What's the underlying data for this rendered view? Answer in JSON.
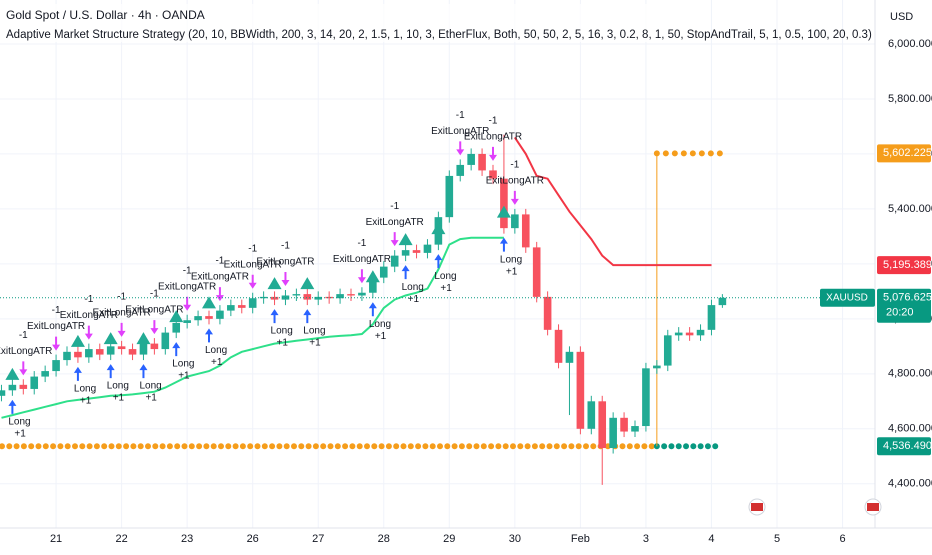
{
  "chart_data": {
    "type": "candlestick",
    "title": "Gold Spot / U.S. Dollar · 4h · OANDA",
    "subtitle": "Adaptive Market Structure Strategy (20, 10, BBWidth, 200, 3, 14, 20, 2, 1.5, 1, 10, 3, EtherFlux, Both, 50, 50, 2, 5, 16, 3, 0.2, 8, 1, 50, StopAndTrail, 5, 1, 0.5, 100, 20, 0.3)",
    "currency": "USD",
    "up_color": "#22ab94",
    "down_color": "#f7525f",
    "grid": true,
    "ylim": [
      4210,
      6160
    ],
    "yticks": [
      {
        "value": 4400,
        "label": "4,400.000"
      },
      {
        "value": 4600,
        "label": "4,600.000"
      },
      {
        "value": 4800,
        "label": "4,800.000"
      },
      {
        "value": 5000,
        "label": "5,000.000"
      },
      {
        "value": 5200,
        "label": "5,200.000"
      },
      {
        "value": 5400,
        "label": "5,400.000"
      },
      {
        "value": 5600,
        "label": "5,600.000"
      },
      {
        "value": 5800,
        "label": "5,800.000"
      },
      {
        "value": 6000,
        "label": "6,000.000"
      }
    ],
    "categories": [
      null,
      null,
      null,
      null,
      null,
      "21",
      null,
      null,
      null,
      null,
      null,
      "22",
      null,
      null,
      null,
      null,
      null,
      "23",
      null,
      null,
      null,
      null,
      null,
      "26",
      null,
      null,
      null,
      null,
      null,
      "27",
      null,
      null,
      null,
      null,
      null,
      "28",
      null,
      null,
      null,
      null,
      null,
      "29",
      null,
      null,
      null,
      null,
      null,
      "30",
      null,
      null,
      null,
      null,
      null,
      "Feb",
      null,
      null,
      null,
      null,
      null,
      "3",
      null,
      null,
      null,
      null,
      null,
      "4",
      null,
      null,
      null,
      null,
      null,
      "5",
      null,
      null,
      null,
      null,
      null,
      "6"
    ],
    "open": [
      4720,
      4740,
      4760,
      4745,
      4790,
      4810,
      4850,
      4880,
      4860,
      4890,
      4870,
      4900,
      4890,
      4870,
      4910,
      4890,
      4950,
      4985,
      4995,
      5010,
      5000,
      5030,
      5050,
      5040,
      5075,
      5080,
      5070,
      5085,
      5090,
      5070,
      5080,
      5075,
      5090,
      5085,
      5095,
      5150,
      5190,
      5230,
      5250,
      5240,
      5270,
      5370,
      5520,
      5560,
      5600,
      5540,
      5510,
      5330,
      5380,
      5260,
      5080,
      4960,
      4840,
      4880,
      4600,
      4700,
      4530,
      4640,
      4590,
      4610,
      4820,
      4830,
      4940,
      4950,
      4940,
      4960,
      5050,
      null,
      null,
      null,
      null,
      null,
      null,
      null,
      null,
      null,
      null,
      null
    ],
    "high": [
      4760,
      4780,
      4780,
      4810,
      4830,
      4870,
      4900,
      4900,
      4910,
      4910,
      4920,
      4920,
      4910,
      4930,
      4930,
      4970,
      5005,
      5015,
      5030,
      5030,
      5050,
      5070,
      5070,
      5095,
      5100,
      5100,
      5105,
      5110,
      5110,
      5100,
      5100,
      5110,
      5110,
      5115,
      5170,
      5210,
      5250,
      5270,
      5270,
      5290,
      5390,
      5540,
      5580,
      5620,
      5620,
      5560,
      5670,
      5400,
      5400,
      5280,
      5100,
      4980,
      4900,
      4900,
      4720,
      4720,
      4660,
      4660,
      4630,
      4840,
      4850,
      4960,
      4970,
      4970,
      4980,
      5070,
      5090,
      null,
      null,
      null,
      null,
      null,
      null,
      null,
      null,
      null,
      null,
      null
    ],
    "low": [
      4700,
      4720,
      4725,
      4725,
      4770,
      4790,
      4830,
      4840,
      4840,
      4850,
      4850,
      4870,
      4850,
      4850,
      4870,
      4870,
      4930,
      4965,
      4975,
      4980,
      4980,
      5010,
      5020,
      5020,
      5055,
      5050,
      5050,
      5065,
      5050,
      5050,
      5055,
      5055,
      5065,
      5065,
      5075,
      5130,
      5170,
      5210,
      5220,
      5220,
      5250,
      5350,
      5500,
      5540,
      5520,
      5490,
      5310,
      5310,
      5240,
      5060,
      4940,
      4820,
      4650,
      4580,
      4580,
      4396,
      4510,
      4570,
      4570,
      4590,
      4800,
      4810,
      4920,
      4920,
      4920,
      4940,
      5040,
      null,
      null,
      null,
      null,
      null,
      null,
      null,
      null,
      null,
      null,
      null
    ],
    "close": [
      4740,
      4760,
      4745,
      4790,
      4810,
      4850,
      4880,
      4860,
      4890,
      4870,
      4900,
      4890,
      4870,
      4910,
      4890,
      4950,
      4985,
      4995,
      5010,
      5000,
      5030,
      5050,
      5040,
      5075,
      5080,
      5070,
      5085,
      5090,
      5070,
      5080,
      5075,
      5090,
      5085,
      5095,
      5150,
      5190,
      5230,
      5250,
      5240,
      5270,
      5370,
      5520,
      5560,
      5600,
      5540,
      5510,
      5330,
      5380,
      5260,
      5080,
      4960,
      4840,
      4880,
      4600,
      4700,
      4530,
      4640,
      4590,
      4610,
      4820,
      4830,
      4940,
      4950,
      4940,
      4960,
      5050,
      5076.625,
      null,
      null,
      null,
      null,
      null,
      null,
      null,
      null,
      null,
      null,
      null
    ],
    "lines": [
      {
        "color": "#2ee08a",
        "values": [
          4640,
          4650,
          4660,
          4670,
          4680,
          4690,
          4700,
          4705,
          4710,
          4715,
          4720,
          4722,
          4725,
          4730,
          4735,
          4750,
          4770,
          4790,
          4800,
          4810,
          4830,
          4860,
          4880,
          4890,
          4900,
          4910,
          4915,
          4920,
          4925,
          4930,
          4935,
          4938,
          4940,
          4945,
          4980,
          5040,
          5070,
          5085,
          5095,
          5110,
          5180,
          5270,
          5290,
          5295,
          5295,
          5295,
          5295,
          null,
          null,
          null,
          null,
          null,
          null,
          null,
          null,
          null,
          null,
          null,
          null,
          null,
          null,
          null,
          null,
          null,
          null,
          null,
          null,
          null,
          null,
          null,
          null,
          null,
          null,
          null,
          null,
          null,
          null
        ]
      },
      {
        "color": "#f23645",
        "values": [
          null,
          null,
          null,
          null,
          null,
          null,
          null,
          null,
          null,
          null,
          null,
          null,
          null,
          null,
          null,
          null,
          null,
          null,
          null,
          null,
          null,
          null,
          null,
          null,
          null,
          null,
          null,
          null,
          null,
          null,
          null,
          null,
          null,
          null,
          null,
          null,
          null,
          null,
          null,
          null,
          null,
          null,
          null,
          null,
          null,
          null,
          null,
          5660,
          5600,
          5520,
          5510,
          5450,
          5390,
          5340,
          5290,
          5230,
          5195.389,
          5195.389,
          5195.389,
          5195.389,
          5195.389,
          5195.389,
          5195.389,
          5195.389,
          5195.389,
          5195.389,
          null,
          null,
          null,
          null,
          null,
          null,
          null,
          null,
          null,
          null,
          null,
          null
        ]
      }
    ],
    "entries": [
      null,
      {
        "label": "Long",
        "result": "+1"
      },
      null,
      null,
      null,
      null,
      null,
      {
        "label": "Long",
        "result": "+1"
      },
      null,
      null,
      {
        "label": "Long",
        "result": "+1"
      },
      null,
      null,
      {
        "label": "Long",
        "result": "+1"
      },
      null,
      null,
      {
        "label": "Long",
        "result": "+1"
      },
      null,
      null,
      {
        "label": "Long",
        "result": "+1"
      },
      null,
      null,
      null,
      null,
      null,
      {
        "label": "Long",
        "result": "+1"
      },
      null,
      null,
      {
        "label": "Long",
        "result": "+1"
      },
      null,
      null,
      null,
      null,
      null,
      {
        "label": "Long",
        "result": "+1"
      },
      null,
      null,
      {
        "label": "Long",
        "result": "+1"
      },
      null,
      null,
      {
        "label": "Long",
        "result": "+1"
      },
      null,
      null,
      null,
      null,
      null,
      {
        "label": "Long",
        "result": "+1"
      },
      null,
      null,
      null,
      null,
      null,
      null,
      null,
      null,
      null,
      null,
      null,
      null,
      null,
      null,
      null,
      null,
      null,
      null,
      null,
      null,
      null,
      null,
      null,
      null,
      null,
      null,
      null,
      null,
      null,
      null,
      null
    ],
    "exits": [
      null,
      null,
      {
        "label": "ExitLongATR",
        "result": "-1"
      },
      null,
      null,
      {
        "label": "ExitLongATR",
        "result": "-1"
      },
      null,
      null,
      {
        "label": "ExitLongATR",
        "result": "-1"
      },
      null,
      null,
      {
        "label": "ExitLongATR",
        "result": "-1"
      },
      null,
      null,
      {
        "label": "ExitLongATR",
        "result": "-1"
      },
      null,
      null,
      {
        "label": "ExitLongATR",
        "result": "-1"
      },
      null,
      null,
      {
        "label": "ExitLongATR",
        "result": "-1"
      },
      null,
      null,
      {
        "label": "ExitLongATR",
        "result": "-1"
      },
      null,
      null,
      {
        "label": "ExitLongATR",
        "result": "-1"
      },
      null,
      null,
      null,
      null,
      null,
      null,
      {
        "label": "ExitLongATR",
        "result": "-1"
      },
      null,
      null,
      {
        "label": "ExitLongATR",
        "result": "-1"
      },
      null,
      null,
      null,
      null,
      null,
      {
        "label": "ExitLongATR",
        "result": "-1"
      },
      null,
      null,
      {
        "label": "ExitLongATR",
        "result": "-1"
      },
      null,
      {
        "label": "ExitLongATR",
        "result": "-1"
      },
      null,
      null,
      null,
      null,
      null,
      null,
      null,
      null,
      null,
      null,
      null,
      null,
      null,
      null,
      null,
      null,
      null,
      null,
      null,
      null,
      null,
      null,
      null,
      null,
      null,
      null,
      null,
      null,
      null,
      null
    ],
    "levels": [
      {
        "label": "5,602.225",
        "value": 5602.225,
        "color": "#f59d1b"
      },
      {
        "label": "5,195.389",
        "value": 5195.389,
        "color": "#f23645"
      },
      {
        "label": "4,536.490",
        "value": 4536.49,
        "color": "#089981"
      }
    ],
    "last": {
      "symbol": "XAUUSD",
      "label": "5,076.625",
      "value": 5076.625,
      "countdown": "20:20",
      "color": "#089981"
    }
  }
}
